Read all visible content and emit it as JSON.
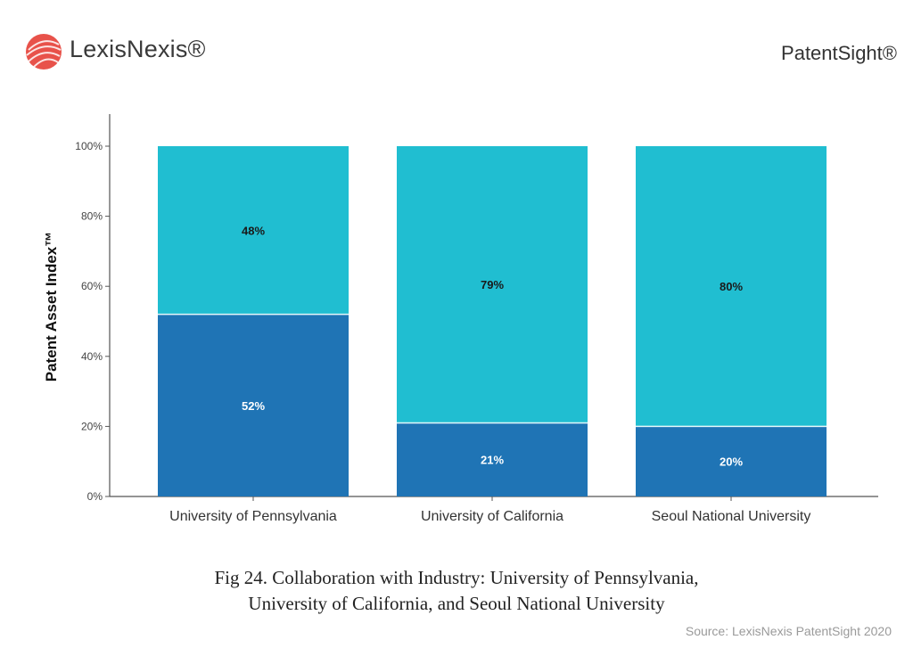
{
  "header": {
    "brand_left": "LexisNexis®",
    "brand_right": "PatentSight®",
    "logo_icon": "lexisnexis-sphere-icon"
  },
  "colors": {
    "top_segment": "#20bed1",
    "bottom_segment": "#1f74b5",
    "axis": "#555555"
  },
  "chart_data": {
    "type": "bar",
    "stacked": true,
    "categories": [
      "University of Pennsylvania",
      "University of California",
      "Seoul National University"
    ],
    "series": [
      {
        "values": [
          52,
          21,
          20
        ],
        "labels": [
          "52%",
          "21%",
          "20%"
        ]
      },
      {
        "values": [
          48,
          79,
          80
        ],
        "labels": [
          "48%",
          "79%",
          "80%"
        ]
      }
    ],
    "ylabel": "Patent Asset Index™",
    "ylim": [
      0,
      100
    ],
    "yticks": [
      0,
      20,
      40,
      60,
      80,
      100
    ],
    "ytick_labels": [
      "0%",
      "20%",
      "40%",
      "60%",
      "80%",
      "100%"
    ],
    "grid": false,
    "legend": "none"
  },
  "caption": {
    "line1": "Fig 24. Collaboration with Industry: University of Pennsylvania,",
    "line2": "University of California, and Seoul National University"
  },
  "source": "Source: LexisNexis PatentSight 2020"
}
